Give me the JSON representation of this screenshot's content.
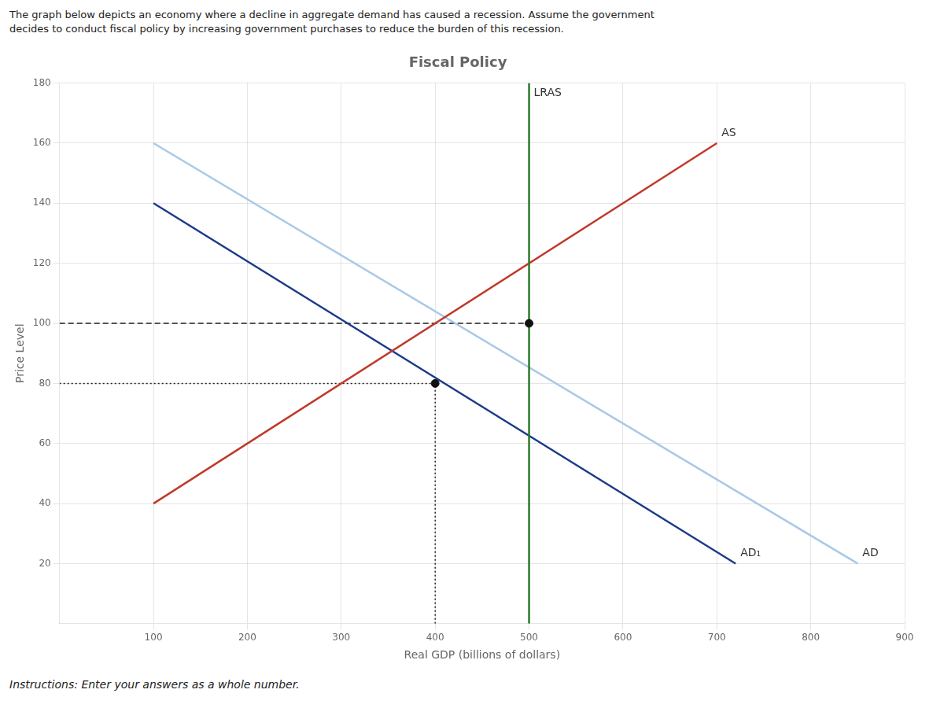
{
  "chart_data": {
    "type": "line",
    "title": "Fiscal Policy",
    "subtitle": [
      "The graph below depicts an economy where a decline in aggregate demand has caused a recession. Assume the government",
      "decides to conduct fiscal policy by increasing government purchases to reduce the burden of this recession."
    ],
    "caption": "Instructions: Enter your answers as a whole number.",
    "x_label": "Real GDP (billions of dollars)",
    "y_label": "Price Level",
    "xlim": [
      0,
      900
    ],
    "ylim": [
      0,
      180
    ],
    "xticks": [
      100,
      200,
      300,
      400,
      500,
      600,
      700,
      800,
      900
    ],
    "yticks": [
      20,
      40,
      60,
      80,
      100,
      120,
      140,
      160,
      180
    ],
    "grid": true,
    "series": [
      {
        "name": "LRAS",
        "color": "#2a7a2a",
        "x": [
          500,
          500
        ],
        "values": [
          0,
          180
        ]
      },
      {
        "name": "AS",
        "color": "#c0392b",
        "x": [
          100,
          700
        ],
        "values": [
          40,
          160
        ]
      },
      {
        "name": "AD",
        "color": "#a8c8e8",
        "x": [
          100,
          850
        ],
        "values": [
          160,
          20
        ]
      },
      {
        "name": "AD₁",
        "color": "#1a3a8a",
        "x": [
          100,
          720
        ],
        "values": [
          140,
          20
        ]
      },
      {
        "color": "#222222",
        "line_style": "dashed",
        "x": [
          0,
          500
        ],
        "values": [
          100,
          100
        ]
      },
      {
        "color": "#222222",
        "line_style": "dotted",
        "x": [
          0,
          400
        ],
        "values": [
          80,
          80
        ]
      },
      {
        "color": "#222222",
        "line_style": "dotted",
        "x": [
          400,
          400
        ],
        "values": [
          0,
          80
        ]
      },
      {
        "type": "scatter",
        "marker": "circle",
        "color": "#111111",
        "x": [
          500,
          400
        ],
        "values": [
          100,
          80
        ]
      }
    ]
  }
}
